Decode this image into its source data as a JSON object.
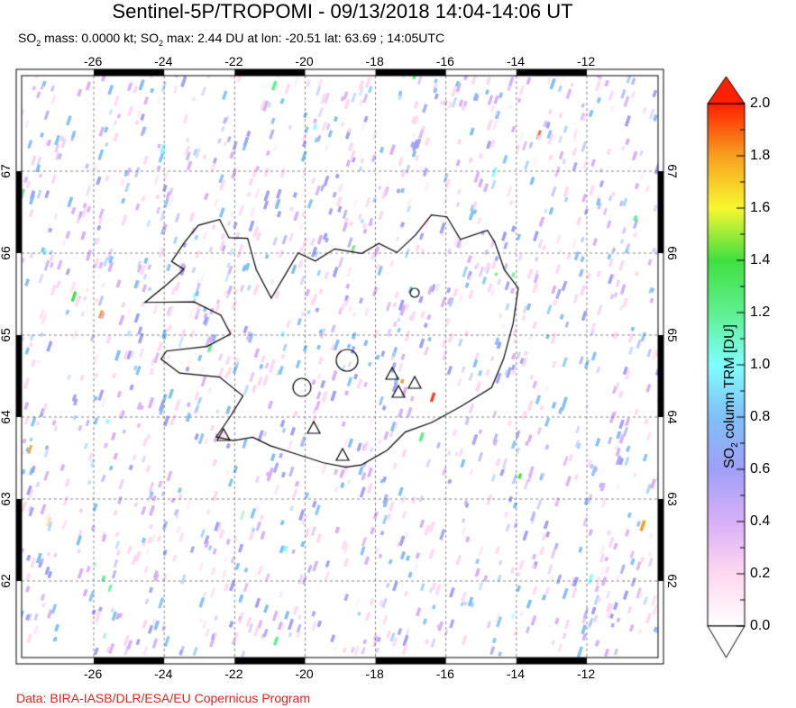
{
  "header": {
    "title": "Sentinel-5P/TROPOMI - 09/13/2018 14:04-14:06 UT",
    "subtitle_parts": [
      "SO",
      "2",
      " mass: 0.0000 kt; SO",
      "2",
      " max: 2.44 DU at lon: -20.51 lat: 63.69 ; 14:05UTC"
    ]
  },
  "map": {
    "region": "Iceland",
    "lon_range": [
      -28,
      -10
    ],
    "lat_range": [
      61.1,
      68.2
    ],
    "lon_ticks": [
      "-26",
      "-24",
      "-22",
      "-20",
      "-18",
      "-16",
      "-14",
      "-12"
    ],
    "lat_ticks": [
      "67",
      "66",
      "65",
      "64",
      "63",
      "62"
    ],
    "gridlines": true,
    "volcano_markers": "triangle"
  },
  "colorbar": {
    "label_parts": [
      "SO",
      "2",
      " column TRM [DU]"
    ],
    "ticks": [
      "2.0",
      "1.8",
      "1.6",
      "1.4",
      "1.2",
      "1.0",
      "0.8",
      "0.6",
      "0.4",
      "0.2",
      "0.0"
    ],
    "min": 0.0,
    "max": 2.0,
    "colors": [
      "#ffffff",
      "#ffd8f0",
      "#d8b0f8",
      "#a0a0f8",
      "#80c0f8",
      "#80ffff",
      "#60f090",
      "#40e040",
      "#f8f830",
      "#f8a020",
      "#ff2000"
    ]
  },
  "credit": "Data: BIRA-IASB/DLR/ESA/EU Copernicus Program"
}
